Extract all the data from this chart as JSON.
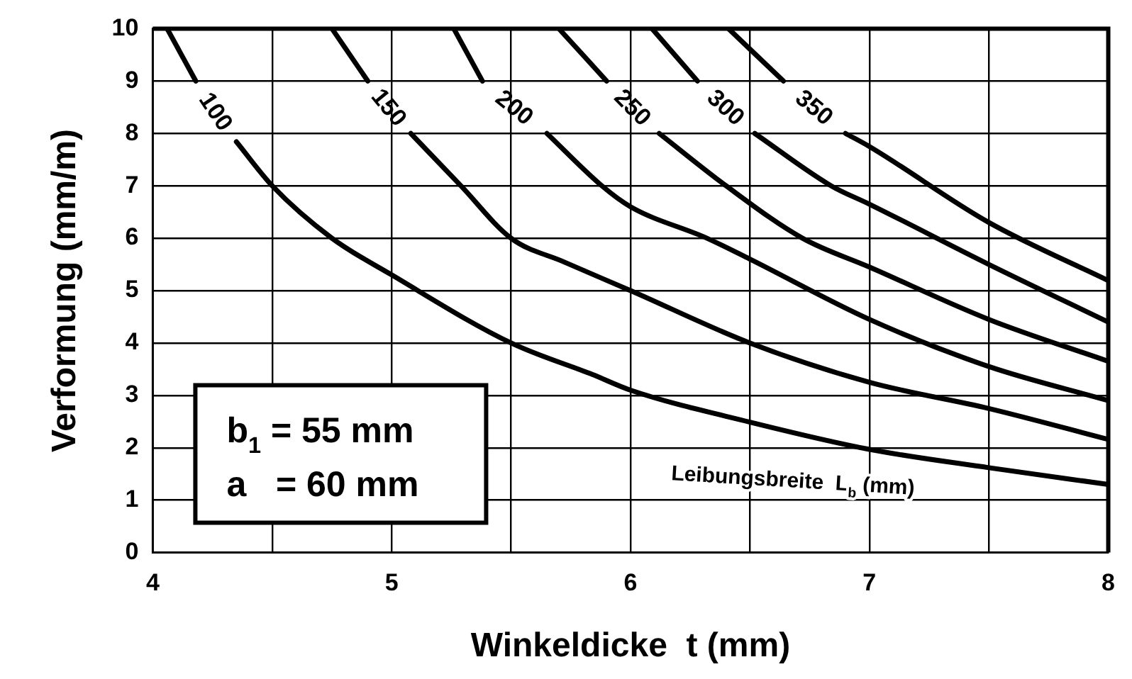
{
  "chart_data": {
    "type": "line",
    "xlabel": "Winkeldicke  t (mm)",
    "ylabel": "Verformung (mm/m)",
    "xlim": [
      4,
      8
    ],
    "xticks": [
      4,
      {
        "value": 4.5,
        "label": null
      },
      5,
      {
        "value": 5.5,
        "label": null
      },
      6,
      {
        "value": 6.5,
        "label": null
      },
      7,
      {
        "value": 7.5,
        "label": null
      },
      8
    ],
    "ylim": [
      0,
      10
    ],
    "yticks": [
      0,
      1,
      2,
      3,
      4,
      5,
      6,
      7,
      8,
      9,
      10
    ],
    "grid": true,
    "legend": false,
    "marker": "none",
    "line_style": "solid",
    "annotations": [
      "b$_{1}$ = 55 mm",
      "a   = 60 mm",
      "Leibungsbreite  L$_{b}$ (mm)"
    ],
    "series": [
      {
        "name": "100",
        "color": "#000000",
        "x": [
          4.06,
          4.18,
          4.27,
          4.35,
          4.5,
          4.75,
          5.0,
          5.5,
          5.84,
          6,
          6.5,
          7,
          7.5,
          8
        ],
        "values": [
          10,
          9,
          null,
          7.84,
          7.0,
          6.0,
          5.3,
          4.0,
          3.4,
          3.1,
          2.49,
          1.97,
          1.62,
          1.3
        ]
      },
      {
        "name": "150",
        "color": "#000000",
        "x": [
          4.75,
          4.9,
          5.0,
          5.08,
          5.29,
          5.5,
          5.72,
          6,
          6.5,
          7,
          7.5,
          8
        ],
        "values": [
          10,
          9,
          null,
          8.0,
          7,
          6.0,
          5.55,
          5.0,
          4.0,
          3.25,
          2.75,
          2.16
        ]
      },
      {
        "name": "200",
        "color": "#000000",
        "x": [
          5.26,
          5.38,
          5.5,
          5.65,
          5.88,
          6,
          6.32,
          6.5,
          7,
          7.5,
          8
        ],
        "values": [
          10,
          9,
          null,
          8.0,
          7,
          6.6,
          6.0,
          5.6,
          4.45,
          3.55,
          2.9
        ]
      },
      {
        "name": "250",
        "color": "#000000",
        "x": [
          5.7,
          5.9,
          6.0,
          6.12,
          6.4,
          6.72,
          7,
          7.5,
          8
        ],
        "values": [
          10,
          9,
          null,
          8.0,
          7,
          6.0,
          5.45,
          4.45,
          3.65
        ]
      },
      {
        "name": "300",
        "color": "#000000",
        "x": [
          6.09,
          6.28,
          6.4,
          6.52,
          6.84,
          7,
          7.5,
          8
        ],
        "values": [
          10,
          9,
          null,
          8.0,
          7,
          6.65,
          5.5,
          4.4
        ]
      },
      {
        "name": "350",
        "color": "#000000",
        "x": [
          6.41,
          6.64,
          6.76,
          6.9,
          7,
          7.5,
          8
        ],
        "values": [
          10,
          9,
          null,
          8.0,
          7.75,
          6.3,
          5.19
        ]
      }
    ]
  }
}
